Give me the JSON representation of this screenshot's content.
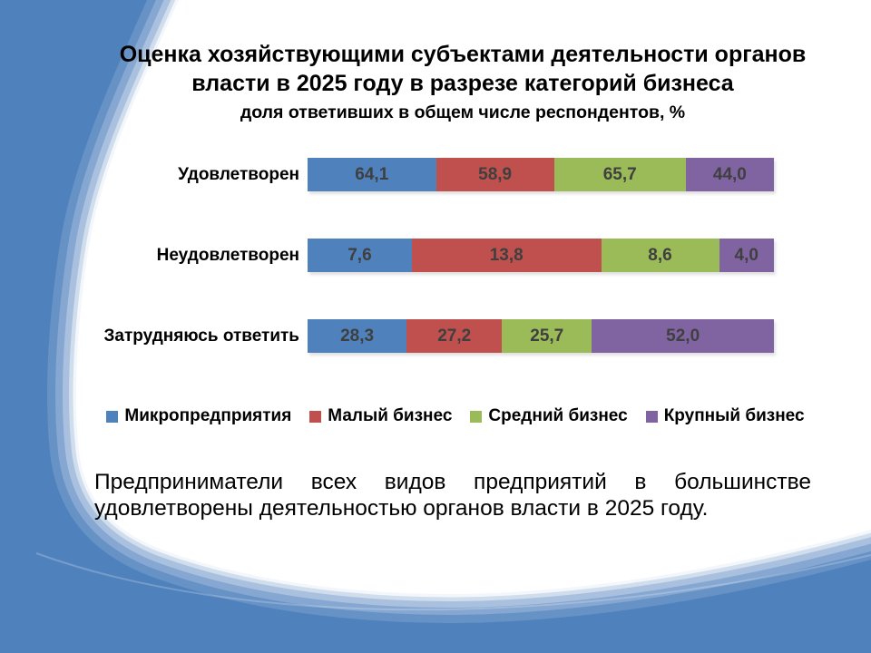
{
  "slide": {
    "title_lines": [
      "Оценка хозяйствующими субъектами деятельности органов",
      "власти в 2025 году в разрезе категорий бизнеса"
    ],
    "subtitle": "доля ответивших в общем числе респондентов, %",
    "commentary": "Предприниматели всех видов предприятий в большинстве удовлетворены деятельностью органов власти в 2025 году."
  },
  "chart_data": {
    "type": "bar",
    "subtype": "horizontal-100%-stacked",
    "title": "Оценка хозяйствующими субъектами деятельности органов власти в 2025 году в разрезе категорий бизнеса",
    "xlabel": "",
    "ylabel": "",
    "grid": false,
    "legend_position": "bottom",
    "decimal_separator": ",",
    "categories": [
      "Удовлетворен",
      "Неудовлетворен",
      "Затрудняюсь ответить"
    ],
    "series": [
      {
        "name": "Микропредприятия",
        "color": "#4F81BD",
        "values": [
          64.1,
          7.6,
          28.3
        ]
      },
      {
        "name": "Малый бизнес",
        "color": "#C0504D",
        "values": [
          58.9,
          13.8,
          27.2
        ]
      },
      {
        "name": "Средний бизнес",
        "color": "#9BBB59",
        "values": [
          65.7,
          8.6,
          25.7
        ]
      },
      {
        "name": "Крупный бизнес",
        "color": "#8064A2",
        "values": [
          44.0,
          4.0,
          52.0
        ]
      }
    ]
  },
  "theme": {
    "background_accent": "#4F81BD",
    "text_color": "#000000",
    "value_label_color": "#3F3F3F"
  }
}
